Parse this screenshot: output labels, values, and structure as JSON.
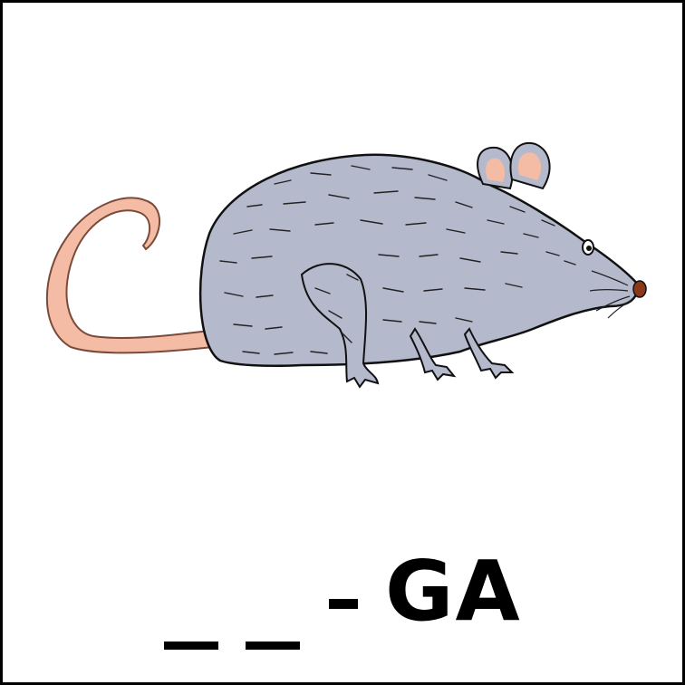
{
  "card": {
    "image": {
      "subject": "rat-icon",
      "colors": {
        "body": "#b5b9cc",
        "tail": "#f4bca4",
        "inner_ear": "#f4bca4",
        "nose": "#8a3a1a",
        "outline": "#111111"
      }
    },
    "word": {
      "blank_1": "_",
      "blank_2": "_",
      "separator": "-",
      "syllable": "GA"
    }
  }
}
